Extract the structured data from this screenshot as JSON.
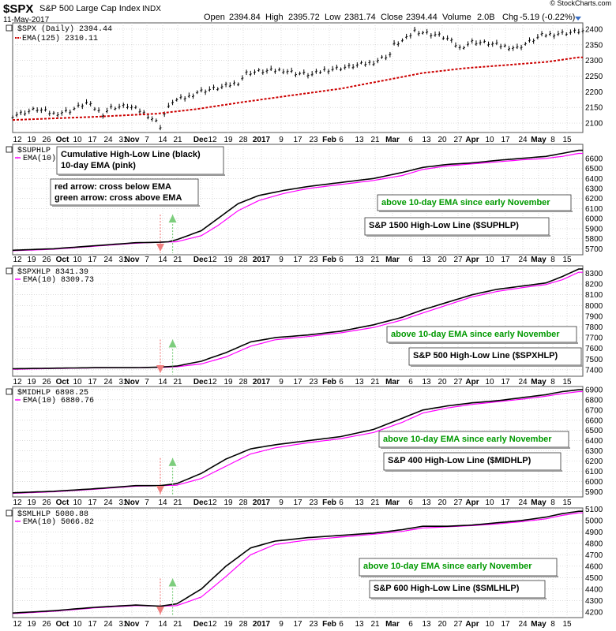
{
  "header": {
    "symbol": "$SPX",
    "name": "S&P 500 Large Cap Index",
    "exchange": "INDX",
    "date": "11-May-2017",
    "open_label": "Open",
    "open": "2394.84",
    "high_label": "High",
    "high": "2395.72",
    "low_label": "Low",
    "low": "2381.74",
    "close_label": "Close",
    "close": "2394.44",
    "volume_label": "Volume",
    "volume": "2.0B",
    "chg_label": "Chg",
    "chg": "-5.19 (-0.22%)",
    "watermark": "© StockCharts.com"
  },
  "colors": {
    "price": "#000000",
    "ema": "#ff00ff",
    "ema125": "#cc0000",
    "grid": "#c8c8c8",
    "red_arrow": "#f08080",
    "green_arrow": "#7ccd7c",
    "green_text": "#009900"
  },
  "x_axis": {
    "labels": [
      "12",
      "19",
      "26",
      "Oct",
      "10",
      "17",
      "24",
      "31",
      "Nov",
      "7",
      "14",
      "21",
      "Dec",
      "12",
      "19",
      "28",
      "2017",
      "9",
      "17",
      "23",
      "Feb",
      "6",
      "13",
      "21",
      "Mar",
      "6",
      "13",
      "20",
      "27",
      "Apr",
      "10",
      "17",
      "24",
      "May",
      "8",
      "15"
    ],
    "bold": [
      "Oct",
      "Nov",
      "Dec",
      "2017",
      "Feb",
      "Mar",
      "Apr",
      "May"
    ]
  },
  "chart_data": [
    {
      "type": "ohlc-line",
      "title": "$SPX (Daily) 2394.44",
      "legend": [
        {
          "name": "$SPX (Daily)",
          "value": "2394.44"
        },
        {
          "name": "EMA(125)",
          "value": "2310.11"
        }
      ],
      "ylim": [
        2070,
        2420
      ],
      "yticks": [
        2100,
        2150,
        2200,
        2250,
        2300,
        2350,
        2400
      ],
      "price": [
        [
          0,
          2125
        ],
        [
          6,
          2145
        ],
        [
          10,
          2130
        ],
        [
          14,
          2140
        ],
        [
          18,
          2165
        ],
        [
          22,
          2130
        ],
        [
          24,
          2150
        ],
        [
          28,
          2155
        ],
        [
          31,
          2140
        ],
        [
          33,
          2125
        ],
        [
          35,
          2105
        ],
        [
          36,
          2090
        ],
        [
          37,
          2130
        ],
        [
          39,
          2170
        ],
        [
          43,
          2185
        ],
        [
          45,
          2200
        ],
        [
          51,
          2215
        ],
        [
          55,
          2230
        ],
        [
          57,
          2260
        ],
        [
          60,
          2265
        ],
        [
          66,
          2270
        ],
        [
          69,
          2260
        ],
        [
          73,
          2255
        ],
        [
          76,
          2270
        ],
        [
          82,
          2280
        ],
        [
          88,
          2295
        ],
        [
          92,
          2320
        ],
        [
          93,
          2350
        ],
        [
          96,
          2370
        ],
        [
          98,
          2395
        ],
        [
          100,
          2390
        ],
        [
          104,
          2380
        ],
        [
          106,
          2370
        ],
        [
          108,
          2350
        ],
        [
          109,
          2340
        ],
        [
          112,
          2360
        ],
        [
          116,
          2355
        ],
        [
          120,
          2345
        ],
        [
          123,
          2340
        ],
        [
          126,
          2360
        ],
        [
          129,
          2380
        ],
        [
          132,
          2385
        ],
        [
          136,
          2390
        ],
        [
          138,
          2394
        ]
      ],
      "ema125": [
        [
          0,
          2110
        ],
        [
          20,
          2120
        ],
        [
          35,
          2130
        ],
        [
          45,
          2145
        ],
        [
          55,
          2165
        ],
        [
          66,
          2185
        ],
        [
          80,
          2210
        ],
        [
          92,
          2240
        ],
        [
          100,
          2260
        ],
        [
          110,
          2275
        ],
        [
          120,
          2285
        ],
        [
          130,
          2295
        ],
        [
          138,
          2310
        ]
      ]
    },
    {
      "type": "line",
      "title": "$SUPHLP",
      "legend": [
        {
          "name": "$SUPHLP",
          "value": ""
        },
        {
          "name": "EMA(10)",
          "value": ""
        }
      ],
      "ylim": [
        5640,
        6740
      ],
      "yticks": [
        5700,
        5800,
        5900,
        6000,
        6100,
        6200,
        6300,
        6400,
        6500,
        6600
      ],
      "main": [
        [
          0,
          5685
        ],
        [
          10,
          5700
        ],
        [
          20,
          5730
        ],
        [
          30,
          5760
        ],
        [
          36,
          5765
        ],
        [
          38,
          5770
        ],
        [
          40,
          5790
        ],
        [
          46,
          5880
        ],
        [
          50,
          6000
        ],
        [
          55,
          6150
        ],
        [
          60,
          6230
        ],
        [
          66,
          6280
        ],
        [
          72,
          6320
        ],
        [
          80,
          6360
        ],
        [
          88,
          6400
        ],
        [
          95,
          6460
        ],
        [
          100,
          6510
        ],
        [
          106,
          6540
        ],
        [
          112,
          6555
        ],
        [
          118,
          6580
        ],
        [
          124,
          6600
        ],
        [
          130,
          6620
        ],
        [
          134,
          6650
        ],
        [
          138,
          6680
        ]
      ],
      "ema": [
        [
          0,
          5680
        ],
        [
          10,
          5695
        ],
        [
          20,
          5725
        ],
        [
          30,
          5755
        ],
        [
          36,
          5765
        ],
        [
          40,
          5770
        ],
        [
          46,
          5830
        ],
        [
          50,
          5930
        ],
        [
          55,
          6080
        ],
        [
          60,
          6180
        ],
        [
          66,
          6250
        ],
        [
          72,
          6300
        ],
        [
          80,
          6340
        ],
        [
          88,
          6380
        ],
        [
          95,
          6430
        ],
        [
          100,
          6490
        ],
        [
          106,
          6525
        ],
        [
          112,
          6545
        ],
        [
          118,
          6565
        ],
        [
          124,
          6585
        ],
        [
          130,
          6600
        ],
        [
          134,
          6620
        ],
        [
          138,
          6650
        ]
      ],
      "annotations": [
        "Cumulative High-Low Line (black)",
        "10-day EMA (pink)",
        "red arrow: cross below EMA",
        "green arrow: cross above EMA",
        "above 10-day EMA since early November",
        "S&P 1500 High-Low Line ($SUPHLP)"
      ]
    },
    {
      "type": "line",
      "title": "$SPXHLP 8341.39",
      "legend": [
        {
          "name": "$SPXHLP",
          "value": "8341.39"
        },
        {
          "name": "EMA(10)",
          "value": "8309.73"
        }
      ],
      "ylim": [
        7340,
        8370
      ],
      "yticks": [
        7400,
        7500,
        7600,
        7700,
        7800,
        7900,
        8000,
        8100,
        8200,
        8300
      ],
      "main": [
        [
          0,
          7410
        ],
        [
          10,
          7415
        ],
        [
          20,
          7420
        ],
        [
          30,
          7420
        ],
        [
          36,
          7425
        ],
        [
          40,
          7435
        ],
        [
          46,
          7480
        ],
        [
          52,
          7560
        ],
        [
          58,
          7660
        ],
        [
          64,
          7700
        ],
        [
          72,
          7725
        ],
        [
          80,
          7760
        ],
        [
          88,
          7820
        ],
        [
          95,
          7890
        ],
        [
          100,
          7960
        ],
        [
          106,
          8030
        ],
        [
          112,
          8100
        ],
        [
          118,
          8150
        ],
        [
          124,
          8180
        ],
        [
          130,
          8210
        ],
        [
          134,
          8270
        ],
        [
          138,
          8340
        ]
      ],
      "ema": [
        [
          0,
          7405
        ],
        [
          10,
          7412
        ],
        [
          20,
          7418
        ],
        [
          30,
          7420
        ],
        [
          36,
          7422
        ],
        [
          40,
          7428
        ],
        [
          46,
          7455
        ],
        [
          52,
          7520
        ],
        [
          58,
          7620
        ],
        [
          64,
          7680
        ],
        [
          72,
          7710
        ],
        [
          80,
          7745
        ],
        [
          88,
          7795
        ],
        [
          95,
          7865
        ],
        [
          100,
          7930
        ],
        [
          106,
          8005
        ],
        [
          112,
          8080
        ],
        [
          118,
          8130
        ],
        [
          124,
          8165
        ],
        [
          130,
          8195
        ],
        [
          134,
          8240
        ],
        [
          138,
          8310
        ]
      ],
      "annotations": [
        "above 10-day EMA since early November",
        "S&P 500 High-Low Line ($SPXHLP)"
      ]
    },
    {
      "type": "line",
      "title": "$MIDHLP 6898.25",
      "legend": [
        {
          "name": "$MIDHLP",
          "value": "6898.25"
        },
        {
          "name": "EMA(10)",
          "value": "6880.76"
        }
      ],
      "ylim": [
        5850,
        6930
      ],
      "yticks": [
        5900,
        6000,
        6100,
        6200,
        6300,
        6400,
        6500,
        6600,
        6700,
        6800,
        6900
      ],
      "main": [
        [
          0,
          5890
        ],
        [
          10,
          5905
        ],
        [
          20,
          5930
        ],
        [
          30,
          5960
        ],
        [
          36,
          5960
        ],
        [
          40,
          5980
        ],
        [
          46,
          6080
        ],
        [
          52,
          6220
        ],
        [
          58,
          6320
        ],
        [
          64,
          6360
        ],
        [
          72,
          6400
        ],
        [
          80,
          6440
        ],
        [
          88,
          6510
        ],
        [
          95,
          6620
        ],
        [
          100,
          6700
        ],
        [
          106,
          6740
        ],
        [
          112,
          6770
        ],
        [
          118,
          6790
        ],
        [
          124,
          6820
        ],
        [
          130,
          6850
        ],
        [
          134,
          6880
        ],
        [
          138,
          6898
        ]
      ],
      "ema": [
        [
          0,
          5885
        ],
        [
          10,
          5900
        ],
        [
          20,
          5925
        ],
        [
          30,
          5955
        ],
        [
          36,
          5960
        ],
        [
          40,
          5965
        ],
        [
          46,
          6030
        ],
        [
          52,
          6150
        ],
        [
          58,
          6270
        ],
        [
          64,
          6330
        ],
        [
          72,
          6380
        ],
        [
          80,
          6420
        ],
        [
          88,
          6480
        ],
        [
          95,
          6580
        ],
        [
          100,
          6670
        ],
        [
          106,
          6720
        ],
        [
          112,
          6755
        ],
        [
          118,
          6780
        ],
        [
          124,
          6805
        ],
        [
          130,
          6835
        ],
        [
          134,
          6860
        ],
        [
          138,
          6880
        ]
      ],
      "annotations": [
        "above 10-day EMA since early November",
        "S&P 400 High-Low Line ($MIDHLP)"
      ]
    },
    {
      "type": "line",
      "title": "$SMLHLP 5080.88",
      "legend": [
        {
          "name": "$SMLHLP",
          "value": "5080.88"
        },
        {
          "name": "EMA(10)",
          "value": "5066.82"
        }
      ],
      "ylim": [
        4150,
        5110
      ],
      "yticks": [
        4200,
        4300,
        4400,
        4500,
        4600,
        4700,
        4800,
        4900,
        5000,
        5100
      ],
      "main": [
        [
          0,
          4190
        ],
        [
          10,
          4210
        ],
        [
          20,
          4240
        ],
        [
          30,
          4260
        ],
        [
          36,
          4250
        ],
        [
          40,
          4270
        ],
        [
          46,
          4400
        ],
        [
          52,
          4600
        ],
        [
          58,
          4760
        ],
        [
          64,
          4820
        ],
        [
          72,
          4850
        ],
        [
          80,
          4870
        ],
        [
          88,
          4890
        ],
        [
          95,
          4920
        ],
        [
          100,
          4950
        ],
        [
          106,
          4950
        ],
        [
          112,
          4960
        ],
        [
          118,
          4980
        ],
        [
          124,
          5000
        ],
        [
          130,
          5030
        ],
        [
          134,
          5060
        ],
        [
          138,
          5081
        ]
      ],
      "ema": [
        [
          0,
          4185
        ],
        [
          10,
          4205
        ],
        [
          20,
          4235
        ],
        [
          30,
          4255
        ],
        [
          36,
          4250
        ],
        [
          40,
          4255
        ],
        [
          46,
          4330
        ],
        [
          52,
          4510
        ],
        [
          58,
          4700
        ],
        [
          64,
          4790
        ],
        [
          72,
          4830
        ],
        [
          80,
          4855
        ],
        [
          88,
          4880
        ],
        [
          95,
          4905
        ],
        [
          100,
          4935
        ],
        [
          106,
          4945
        ],
        [
          112,
          4955
        ],
        [
          118,
          4970
        ],
        [
          124,
          4990
        ],
        [
          130,
          5015
        ],
        [
          134,
          5045
        ],
        [
          138,
          5067
        ]
      ],
      "annotations": [
        "above 10-day EMA since early November",
        "S&P 600 High-Low Line ($SMLHLP)"
      ]
    }
  ]
}
